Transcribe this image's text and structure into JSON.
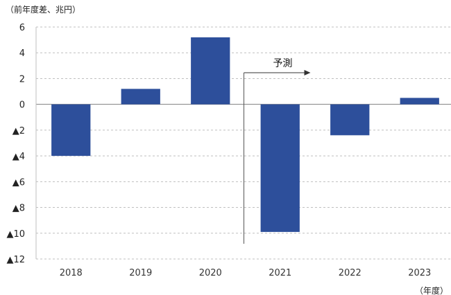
{
  "chart_data": {
    "type": "bar",
    "categories": [
      "2018",
      "2019",
      "2020",
      "2021",
      "2022",
      "2023"
    ],
    "values": [
      -4.0,
      1.2,
      5.2,
      -9.9,
      -2.4,
      0.5
    ],
    "y_unit_label": "（前年度差、兆円）",
    "x_unit_label": "（年度）",
    "ylim": [
      -12,
      6
    ],
    "yticks": [
      6,
      4,
      2,
      0,
      -2,
      -4,
      -6,
      -8,
      -10,
      -12
    ],
    "ytick_labels": [
      "6",
      "4",
      "2",
      "0",
      "▲2",
      "▲4",
      "▲6",
      "▲8",
      "▲10",
      "▲12"
    ],
    "grid": true,
    "annotation": {
      "text": "予測",
      "starts_between": [
        "2020",
        "2021"
      ]
    },
    "colors": {
      "bar": "#2d4f9b",
      "grid": "#bfbfbf",
      "zero_line": "#7f7f7f",
      "axis": "#bfbfbf"
    }
  }
}
